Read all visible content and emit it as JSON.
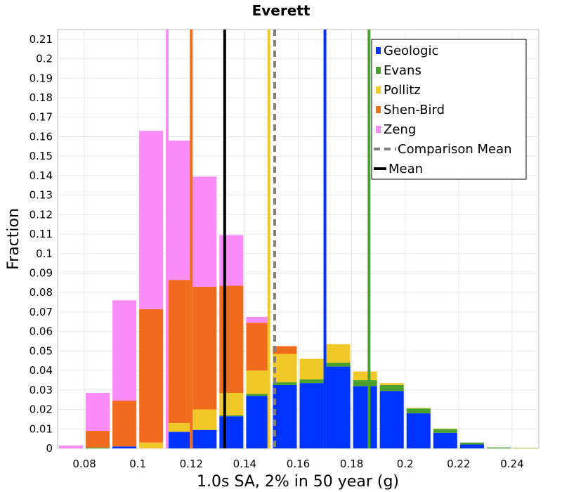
{
  "chart_data": {
    "type": "bar",
    "stacked": true,
    "title": "Everett",
    "xlabel": "1.0s SA, 2% in 50 year (g)",
    "ylabel": "Fraction",
    "xlim": [
      0.07,
      0.25
    ],
    "ylim": [
      0,
      0.215
    ],
    "x_ticks": [
      "0.08",
      "0.1",
      "0.12",
      "0.14",
      "0.16",
      "0.18",
      "0.2",
      "0.22",
      "0.24"
    ],
    "y_ticks": [
      "0",
      "0.01",
      "0.02",
      "0.03",
      "0.04",
      "0.05",
      "0.06",
      "0.07",
      "0.08",
      "0.09",
      "0.1",
      "0.11",
      "0.12",
      "0.13",
      "0.14",
      "0.15",
      "0.16",
      "0.17",
      "0.18",
      "0.19",
      "0.2",
      "0.21"
    ],
    "grid": true,
    "legend_position": "top-right",
    "bin_width": 0.01,
    "x": [
      0.075,
      0.085,
      0.095,
      0.105,
      0.115,
      0.125,
      0.135,
      0.145,
      0.155,
      0.165,
      0.175,
      0.185,
      0.195,
      0.205,
      0.215,
      0.225,
      0.235,
      0.245
    ],
    "series": [
      {
        "name": "Geologic",
        "color": "#0033ff",
        "values": [
          0,
          0,
          0.001,
          0,
          0.0085,
          0.0095,
          0.0165,
          0.027,
          0.0325,
          0.0335,
          0.042,
          0.032,
          0.0295,
          0.018,
          0.008,
          0.002,
          0,
          0
        ]
      },
      {
        "name": "Evans",
        "color": "#4aa02c",
        "values": [
          0,
          0.0005,
          0,
          0,
          0,
          0,
          0.0005,
          0.001,
          0.0015,
          0.002,
          0.002,
          0.003,
          0.003,
          0.0025,
          0.002,
          0.001,
          0.0005,
          0.0002
        ]
      },
      {
        "name": "Pollitz",
        "color": "#f0c828",
        "values": [
          0,
          0,
          0,
          0.003,
          0.0045,
          0.0105,
          0.0115,
          0.012,
          0.0145,
          0.0105,
          0.0095,
          0.0045,
          0.001,
          0.0003,
          0.0002,
          0,
          0,
          0.0001
        ]
      },
      {
        "name": "Shen-Bird",
        "color": "#f06b1c",
        "values": [
          0,
          0.0085,
          0.0235,
          0.0685,
          0.0735,
          0.063,
          0.055,
          0.0245,
          0.004,
          0,
          0,
          0,
          0,
          0,
          0,
          0,
          0,
          0
        ]
      },
      {
        "name": "Zeng",
        "color": "#fa8cfa",
        "values": [
          0.0015,
          0.0195,
          0.0515,
          0.0915,
          0.0715,
          0.0565,
          0.026,
          0.003,
          0,
          0,
          0,
          0,
          0,
          0,
          0,
          0,
          0,
          0
        ]
      }
    ],
    "vertical_lines": [
      {
        "name": "Zeng",
        "x": 0.111,
        "color": "#fa8cfa",
        "style": "solid"
      },
      {
        "name": "Shen-Bird",
        "x": 0.12,
        "color": "#f06b1c",
        "style": "solid"
      },
      {
        "name": "Mean",
        "x": 0.1325,
        "color": "#000000",
        "style": "solid"
      },
      {
        "name": "Pollitz",
        "x": 0.149,
        "color": "#f0c828",
        "style": "solid"
      },
      {
        "name": "Comparison Mean",
        "x": 0.1512,
        "color": "#808080",
        "style": "dashed"
      },
      {
        "name": "Geologic",
        "x": 0.17,
        "color": "#0033ff",
        "style": "solid"
      },
      {
        "name": "Evans",
        "x": 0.1865,
        "color": "#4aa02c",
        "style": "solid"
      }
    ],
    "legend": [
      {
        "label": "Geologic",
        "color": "#0033ff",
        "kind": "box"
      },
      {
        "label": "Evans",
        "color": "#4aa02c",
        "kind": "box"
      },
      {
        "label": "Pollitz",
        "color": "#f0c828",
        "kind": "box"
      },
      {
        "label": "Shen-Bird",
        "color": "#f06b1c",
        "kind": "box"
      },
      {
        "label": "Zeng",
        "color": "#fa8cfa",
        "kind": "box"
      },
      {
        "label": "Comparison Mean",
        "color": "#808080",
        "kind": "dashed"
      },
      {
        "label": "Mean",
        "color": "#000000",
        "kind": "line"
      }
    ]
  }
}
